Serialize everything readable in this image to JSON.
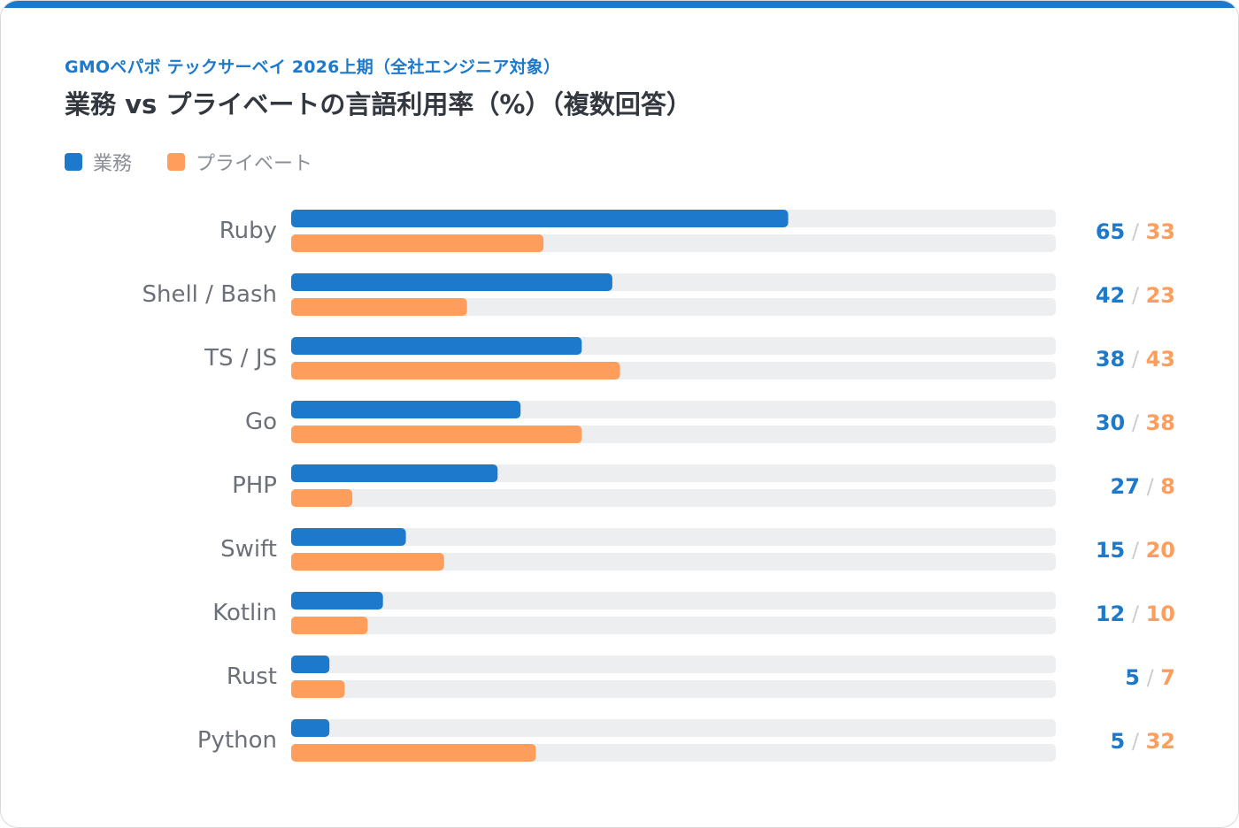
{
  "header": {
    "subtitle": "GMOペパボ テックサーベイ 2026上期（全社エンジニア対象）",
    "title": "業務 vs プライベートの言語利用率（%）（複数回答）"
  },
  "colors": {
    "work": "#1c79cc",
    "private": "#ff9d5c",
    "track": "#edeef0",
    "label": "#6b7079",
    "separator": "#c9ccd1"
  },
  "chart_data": {
    "type": "bar",
    "orientation": "horizontal",
    "title": "業務 vs プライベートの言語利用率（%）（複数回答）",
    "subtitle": "GMOペパボ テックサーベイ 2026上期（全社エンジニア対象）",
    "categories": [
      "Ruby",
      "Shell / Bash",
      "TS / JS",
      "Go",
      "PHP",
      "Swift",
      "Kotlin",
      "Rust",
      "Python"
    ],
    "series": [
      {
        "name": "業務",
        "values": [
          65,
          42,
          38,
          30,
          27,
          15,
          12,
          5,
          5
        ]
      },
      {
        "name": "プライベート",
        "values": [
          33,
          23,
          43,
          38,
          8,
          20,
          10,
          7,
          32
        ]
      }
    ],
    "xlim": [
      0,
      100
    ],
    "separator": "/",
    "legend_position": "top-left",
    "grid": false
  }
}
